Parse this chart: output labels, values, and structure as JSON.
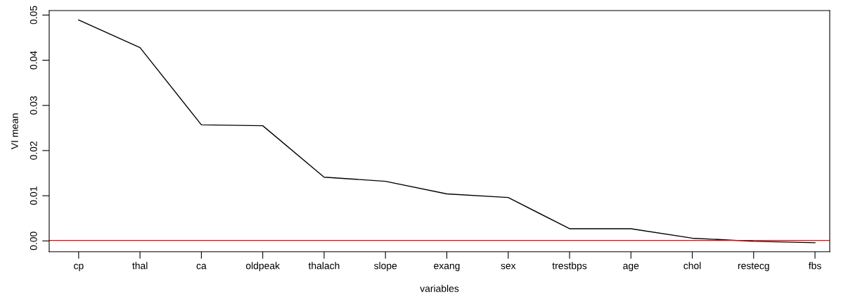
{
  "chart_data": {
    "type": "line",
    "xlabel": "variables",
    "ylabel": "VI mean",
    "categories": [
      "cp",
      "thal",
      "ca",
      "oldpeak",
      "thalach",
      "slope",
      "exang",
      "sex",
      "trestbps",
      "age",
      "chol",
      "restecg",
      "fbs"
    ],
    "series": [
      {
        "color": "#000000",
        "values": [
          0.0489,
          0.0428,
          0.0257,
          0.0255,
          0.0141,
          0.0132,
          0.0104,
          0.0096,
          0.0027,
          0.0027,
          0.0006,
          -0.0001,
          -0.0004
        ]
      }
    ],
    "ylim": [
      -0.0024,
      0.051
    ],
    "yticks": [
      {
        "value": 0,
        "label": "0.00"
      },
      {
        "value": 0.01,
        "label": "0.01"
      },
      {
        "value": 0.02,
        "label": "0.02"
      },
      {
        "value": 0.03,
        "label": "0.03"
      },
      {
        "value": 0.04,
        "label": "0.04"
      },
      {
        "value": 0.05,
        "label": "0.05"
      }
    ],
    "ref_lines": [
      {
        "axis": "y",
        "value": 0.0001,
        "color": "#ff0000"
      }
    ],
    "grid": false,
    "legend": false,
    "marker": "none",
    "line_style": "solid"
  }
}
